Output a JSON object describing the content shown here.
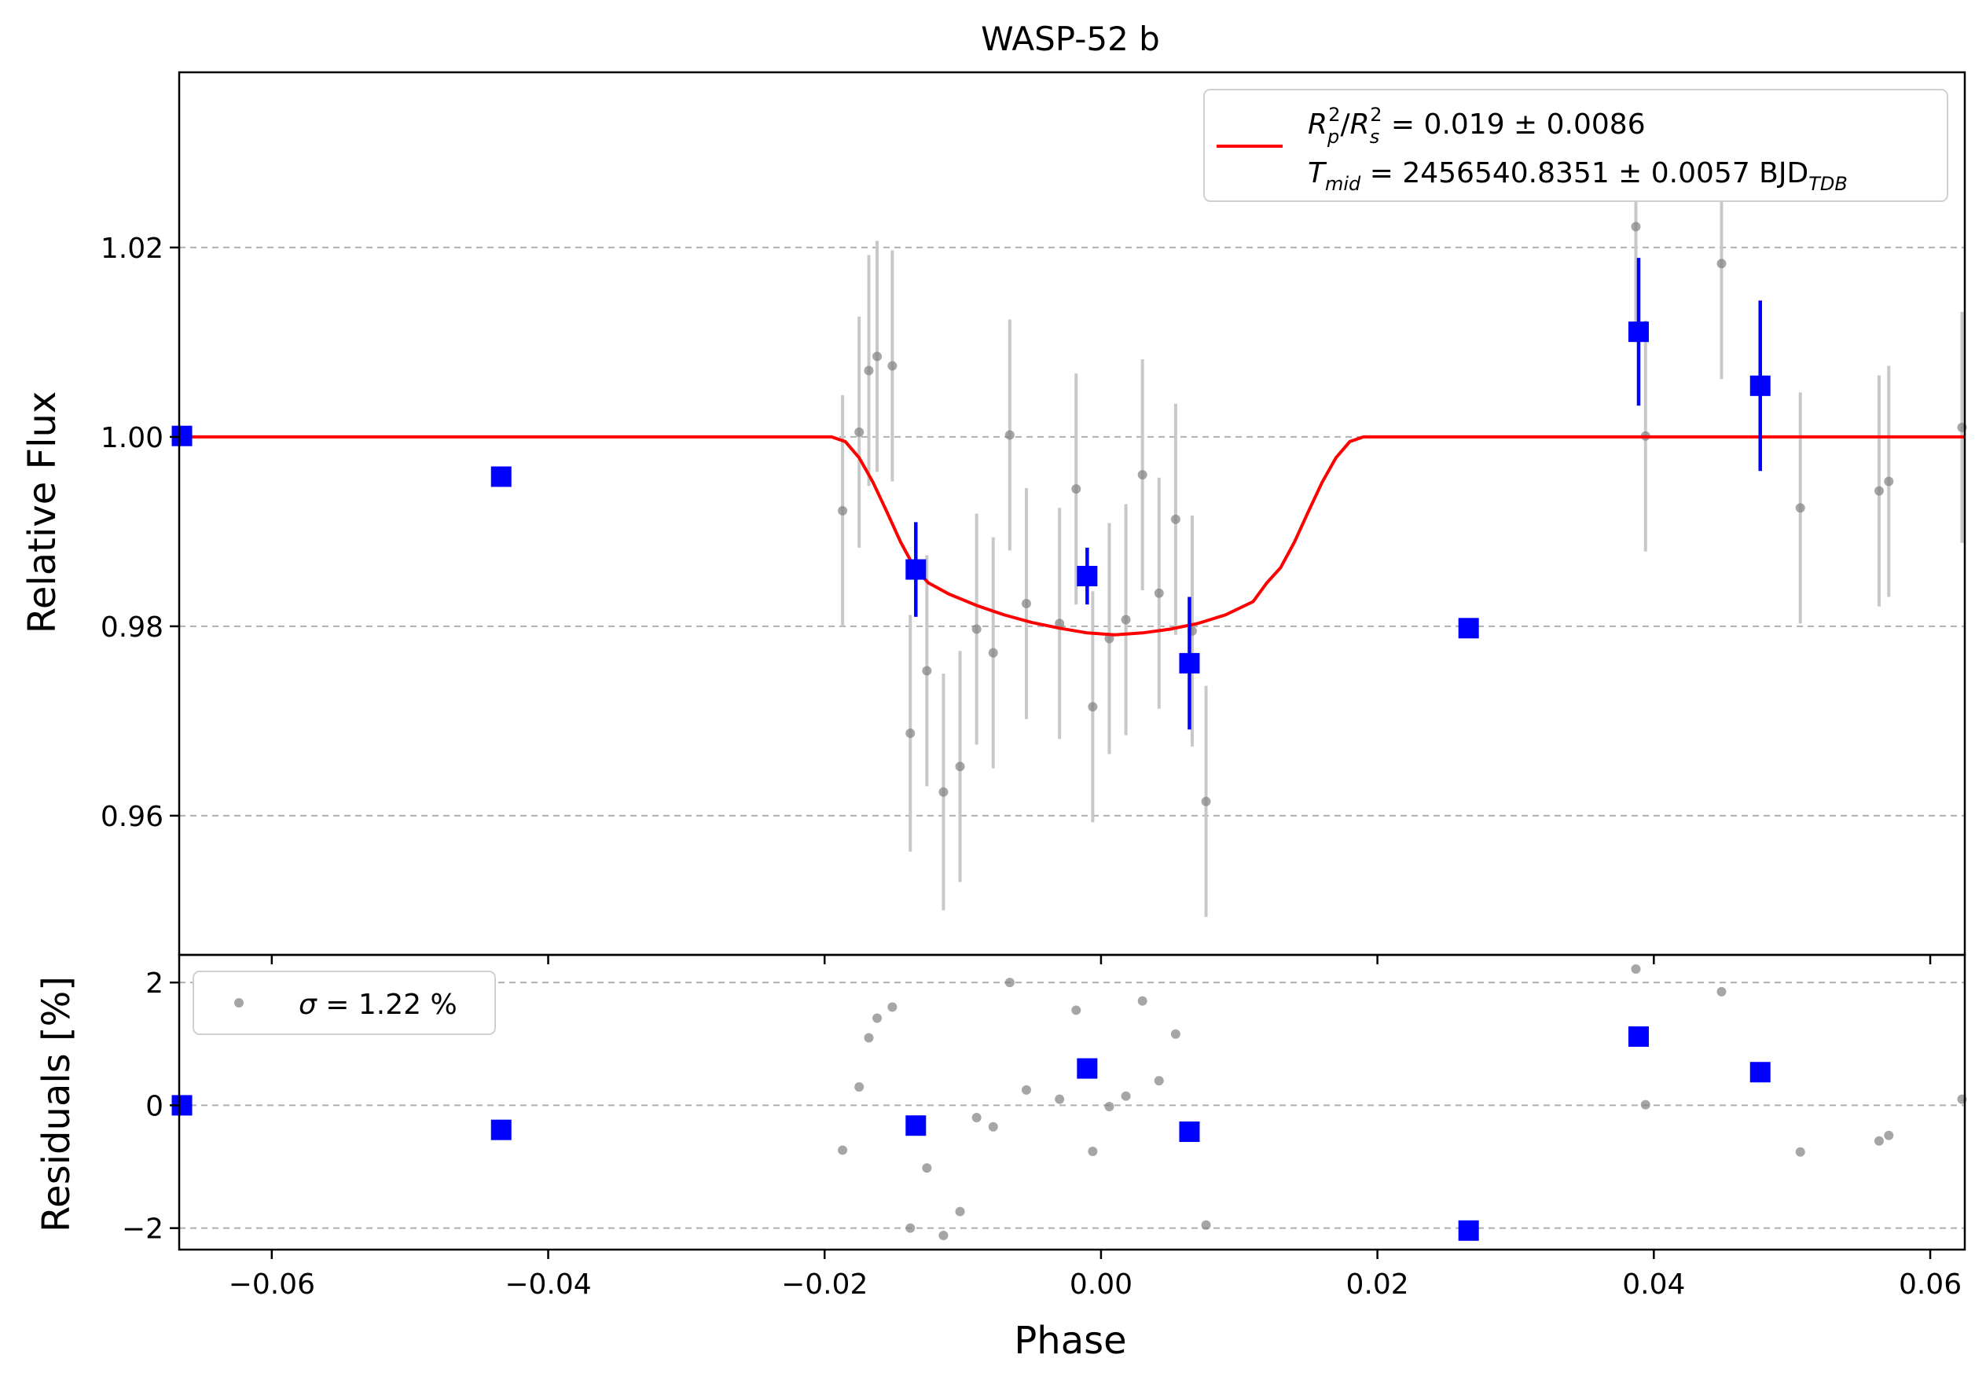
{
  "chart_data": [
    {
      "type": "scatter",
      "panel": "main",
      "title": "WASP-52 b",
      "xlabel": "",
      "ylabel": "Relative Flux",
      "xlim": [
        -0.0667,
        0.0625
      ],
      "ylim": [
        0.9453,
        1.0385
      ],
      "xticks": [
        -0.06,
        -0.04,
        -0.02,
        0.0,
        0.02,
        0.04,
        0.06
      ],
      "xtick_labels": [
        "−0.06",
        "−0.04",
        "−0.02",
        "0.00",
        "0.02",
        "0.04",
        "0.06"
      ],
      "yticks": [
        0.96,
        0.98,
        1.0,
        1.02
      ],
      "ytick_labels": [
        "0.96",
        "0.98",
        "1.00",
        "1.02"
      ],
      "grid": "y-dashed",
      "legend_position": "top-right",
      "legend": {
        "line1_base": "R",
        "line1_sub1": "p",
        "line1_sup1": "2",
        "line1_slash": "/",
        "line1_sub2": "s",
        "line1_sup2": "2",
        "line1_value": " = 0.019 ± 0.0086",
        "line2_base": "T",
        "line2_sub": "mid",
        "line2_value": " = 2456540.8351 ± 0.0057 BJD",
        "line2_unit_sub": "TDB"
      },
      "model": {
        "color": "#ff0000",
        "points": [
          [
            -0.0667,
            1.0
          ],
          [
            -0.0195,
            1.0
          ],
          [
            -0.0185,
            0.9995
          ],
          [
            -0.0175,
            0.9978
          ],
          [
            -0.0165,
            0.9952
          ],
          [
            -0.0155,
            0.9921
          ],
          [
            -0.0145,
            0.9889
          ],
          [
            -0.0135,
            0.9862
          ],
          [
            -0.0125,
            0.9846
          ],
          [
            -0.011,
            0.9834
          ],
          [
            -0.009,
            0.9822
          ],
          [
            -0.007,
            0.9812
          ],
          [
            -0.005,
            0.9804
          ],
          [
            -0.003,
            0.9798
          ],
          [
            -0.001,
            0.9793
          ],
          [
            0.001,
            0.9791
          ],
          [
            0.003,
            0.9793
          ],
          [
            0.005,
            0.9797
          ],
          [
            0.007,
            0.9803
          ],
          [
            0.009,
            0.9812
          ],
          [
            0.011,
            0.9826
          ],
          [
            0.012,
            0.9846
          ],
          [
            0.013,
            0.9862
          ],
          [
            0.014,
            0.9889
          ],
          [
            0.015,
            0.9921
          ],
          [
            0.016,
            0.9952
          ],
          [
            0.017,
            0.9978
          ],
          [
            0.018,
            0.9995
          ],
          [
            0.019,
            1.0
          ],
          [
            0.0625,
            1.0
          ]
        ]
      },
      "raw": {
        "color": "#808080",
        "points": [
          [
            -0.0187,
            0.9922,
            0.0122
          ],
          [
            -0.0175,
            1.0005,
            0.0122
          ],
          [
            -0.0168,
            1.007,
            0.0122
          ],
          [
            -0.0162,
            1.0085,
            0.0122
          ],
          [
            -0.0151,
            1.0075,
            0.0122
          ],
          [
            -0.0138,
            0.9687,
            0.0125
          ],
          [
            -0.0126,
            0.9753,
            0.0122
          ],
          [
            -0.0114,
            0.9625,
            0.0125
          ],
          [
            -0.0102,
            0.9652,
            0.0122
          ],
          [
            -0.009,
            0.9797,
            0.0122
          ],
          [
            -0.0078,
            0.9772,
            0.0122
          ],
          [
            -0.0066,
            1.0002,
            0.0122
          ],
          [
            -0.0054,
            0.9824,
            0.0122
          ],
          [
            -0.003,
            0.9803,
            0.0122
          ],
          [
            -0.0018,
            0.9945,
            0.0122
          ],
          [
            -0.0006,
            0.9715,
            0.0122
          ],
          [
            0.0006,
            0.9787,
            0.0122
          ],
          [
            0.0018,
            0.9807,
            0.0122
          ],
          [
            0.003,
            0.996,
            0.0122
          ],
          [
            0.0042,
            0.9835,
            0.0122
          ],
          [
            0.0054,
            0.9913,
            0.0122
          ],
          [
            0.0066,
            0.9795,
            0.0122
          ],
          [
            0.0076,
            0.9615,
            0.0122
          ],
          [
            0.0387,
            1.0222,
            0.0122
          ],
          [
            0.0394,
            1.0001,
            0.0122
          ],
          [
            0.0449,
            1.0183,
            0.0122
          ],
          [
            0.0506,
            0.9925,
            0.0122
          ],
          [
            0.0563,
            0.9943,
            0.0122
          ],
          [
            0.057,
            0.9953,
            0.0122
          ],
          [
            0.0623,
            1.001,
            0.0122
          ]
        ]
      },
      "binned": {
        "color": "#0000ff",
        "points": [
          [
            -0.0665,
            1.0001,
            0.0
          ],
          [
            -0.0434,
            0.9958,
            0.0
          ],
          [
            -0.0134,
            0.986,
            0.005
          ],
          [
            -0.001,
            0.9853,
            0.003
          ],
          [
            0.0064,
            0.9761,
            0.007
          ],
          [
            0.0266,
            0.9798,
            0.0
          ],
          [
            0.0389,
            1.0111,
            0.0078
          ],
          [
            0.0477,
            1.0054,
            0.009
          ]
        ]
      }
    },
    {
      "type": "scatter",
      "panel": "residuals",
      "xlabel": "Phase",
      "ylabel": "Residuals [%]",
      "xlim": [
        -0.0667,
        0.0625
      ],
      "ylim": [
        -2.35,
        2.45
      ],
      "xticks": [
        -0.06,
        -0.04,
        -0.02,
        0.0,
        0.02,
        0.04,
        0.06
      ],
      "xtick_labels": [
        "−0.06",
        "−0.04",
        "−0.02",
        "0.00",
        "0.02",
        "0.04",
        "0.06"
      ],
      "yticks": [
        -2,
        0,
        2
      ],
      "ytick_labels": [
        "−2",
        "0",
        "2"
      ],
      "grid": "y-dashed",
      "legend_position": "top-left",
      "legend": {
        "symbol": "σ",
        "value": " = 1.22 %"
      },
      "raw": {
        "color": "#808080",
        "points": [
          [
            -0.0187,
            -0.73
          ],
          [
            -0.0175,
            0.3
          ],
          [
            -0.0168,
            1.1
          ],
          [
            -0.0162,
            1.42
          ],
          [
            -0.0151,
            1.6
          ],
          [
            -0.0138,
            -2.0
          ],
          [
            -0.0126,
            -1.02
          ],
          [
            -0.0114,
            -2.12
          ],
          [
            -0.0102,
            -1.73
          ],
          [
            -0.009,
            -0.2
          ],
          [
            -0.0078,
            -0.35
          ],
          [
            -0.0066,
            2.0
          ],
          [
            -0.0054,
            0.25
          ],
          [
            -0.003,
            0.1
          ],
          [
            -0.0018,
            1.55
          ],
          [
            -0.0006,
            -0.75
          ],
          [
            0.0006,
            -0.02
          ],
          [
            0.0018,
            0.15
          ],
          [
            0.003,
            1.7
          ],
          [
            0.0042,
            0.4
          ],
          [
            0.0054,
            1.16
          ],
          [
            0.0076,
            -1.95
          ],
          [
            0.0387,
            2.22
          ],
          [
            0.0394,
            0.01
          ],
          [
            0.0449,
            1.85
          ],
          [
            0.0506,
            -0.76
          ],
          [
            0.0563,
            -0.58
          ],
          [
            0.057,
            -0.49
          ],
          [
            0.0623,
            0.1
          ]
        ]
      },
      "binned": {
        "color": "#0000ff",
        "points": [
          [
            -0.0665,
            0.0
          ],
          [
            -0.0434,
            -0.4
          ],
          [
            -0.0134,
            -0.33
          ],
          [
            -0.001,
            0.6
          ],
          [
            0.0064,
            -0.43
          ],
          [
            0.0266,
            -2.04
          ],
          [
            0.0389,
            1.12
          ],
          [
            0.0477,
            0.54
          ]
        ]
      }
    }
  ]
}
